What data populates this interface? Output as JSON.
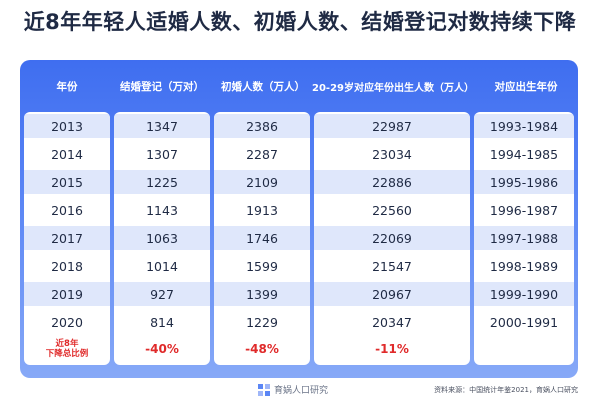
{
  "title": "近8年年轻人适婚人数、初婚人数、结婚登记对数持续下降",
  "chart_data": {
    "type": "table",
    "columns": [
      "年份",
      "结婚登记（万对）",
      "初婚人数（万人）",
      "20-29岁对应年份出生人数（万人）",
      "对应出生年份"
    ],
    "rows": [
      [
        "2013",
        "1347",
        "2386",
        "22987",
        "1993-1984"
      ],
      [
        "2014",
        "1307",
        "2287",
        "23034",
        "1994-1985"
      ],
      [
        "2015",
        "1225",
        "2109",
        "22886",
        "1995-1986"
      ],
      [
        "2016",
        "1143",
        "1913",
        "22560",
        "1996-1987"
      ],
      [
        "2017",
        "1063",
        "1746",
        "22069",
        "1997-1988"
      ],
      [
        "2018",
        "1014",
        "1599",
        "21547",
        "1998-1989"
      ],
      [
        "2019",
        "927",
        "1399",
        "20967",
        "1999-1990"
      ],
      [
        "2020",
        "814",
        "1229",
        "20347",
        "2000-1991"
      ]
    ],
    "summary": {
      "label_line1": "近8年",
      "label_line2": "下降总比例",
      "values": [
        "-40%",
        "-48%",
        "-11%",
        ""
      ]
    }
  },
  "footer": {
    "logo_text": "育娲人口研究",
    "source": "资料来源：中国统计年鉴2021，育娲人口研究"
  },
  "colors": {
    "header_blue": "#3f6ef0",
    "alt_row": "#dfe7fb",
    "negative": "#e02a2a"
  }
}
